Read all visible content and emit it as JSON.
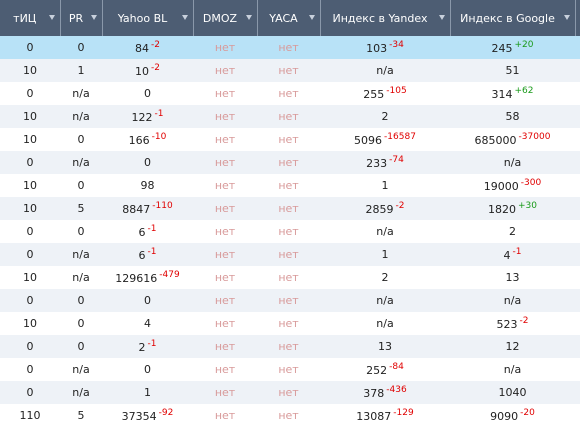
{
  "table": {
    "columns": [
      "тИЦ",
      "PR",
      "Yahoo BL",
      "DMOZ",
      "YACA",
      "Индекс в Yandex",
      "Индекс в Google"
    ],
    "rows": [
      [
        "0",
        "0",
        {
          "value": "84",
          "delta": "-2"
        },
        "нет",
        "нет",
        {
          "value": "103",
          "delta": "-34"
        },
        {
          "value": "245",
          "delta": "+20"
        }
      ],
      [
        "10",
        "1",
        {
          "value": "10",
          "delta": "-2"
        },
        "нет",
        "нет",
        "n/a",
        "51"
      ],
      [
        "0",
        "n/a",
        "0",
        "нет",
        "нет",
        {
          "value": "255",
          "delta": "-105"
        },
        {
          "value": "314",
          "delta": "+62"
        }
      ],
      [
        "10",
        "n/a",
        {
          "value": "122",
          "delta": "-1"
        },
        "нет",
        "нет",
        "2",
        "58"
      ],
      [
        "10",
        "0",
        {
          "value": "166",
          "delta": "-10"
        },
        "нет",
        "нет",
        {
          "value": "5096",
          "delta": "-16587"
        },
        {
          "value": "685000",
          "delta": "-37000"
        }
      ],
      [
        "0",
        "n/a",
        "0",
        "нет",
        "нет",
        {
          "value": "233",
          "delta": "-74"
        },
        "n/a"
      ],
      [
        "10",
        "0",
        "98",
        "нет",
        "нет",
        "1",
        {
          "value": "19000",
          "delta": "-300"
        }
      ],
      [
        "10",
        "5",
        {
          "value": "8847",
          "delta": "-110"
        },
        "нет",
        "нет",
        {
          "value": "2859",
          "delta": "-2"
        },
        {
          "value": "1820",
          "delta": "+30"
        }
      ],
      [
        "0",
        "0",
        {
          "value": "6",
          "delta": "-1"
        },
        "нет",
        "нет",
        "n/a",
        "2"
      ],
      [
        "0",
        "n/a",
        {
          "value": "6",
          "delta": "-1"
        },
        "нет",
        "нет",
        "1",
        {
          "value": "4",
          "delta": "-1"
        }
      ],
      [
        "10",
        "n/a",
        {
          "value": "129616",
          "delta": "-479"
        },
        "нет",
        "нет",
        "2",
        "13"
      ],
      [
        "0",
        "0",
        "0",
        "нет",
        "нет",
        "n/a",
        "n/a"
      ],
      [
        "10",
        "0",
        "4",
        "нет",
        "нет",
        "n/a",
        {
          "value": "523",
          "delta": "-2"
        }
      ],
      [
        "0",
        "0",
        {
          "value": "2",
          "delta": "-1"
        },
        "нет",
        "нет",
        "13",
        "12"
      ],
      [
        "0",
        "n/a",
        "0",
        "нет",
        "нет",
        {
          "value": "252",
          "delta": "-84"
        },
        "n/a"
      ],
      [
        "0",
        "n/a",
        "1",
        "нет",
        "нет",
        {
          "value": "378",
          "delta": "-436"
        },
        "1040"
      ],
      [
        "110",
        "5",
        {
          "value": "37354",
          "delta": "-92"
        },
        "нет",
        "нет",
        {
          "value": "13087",
          "delta": "-129"
        },
        {
          "value": "9090",
          "delta": "-20"
        }
      ]
    ]
  }
}
